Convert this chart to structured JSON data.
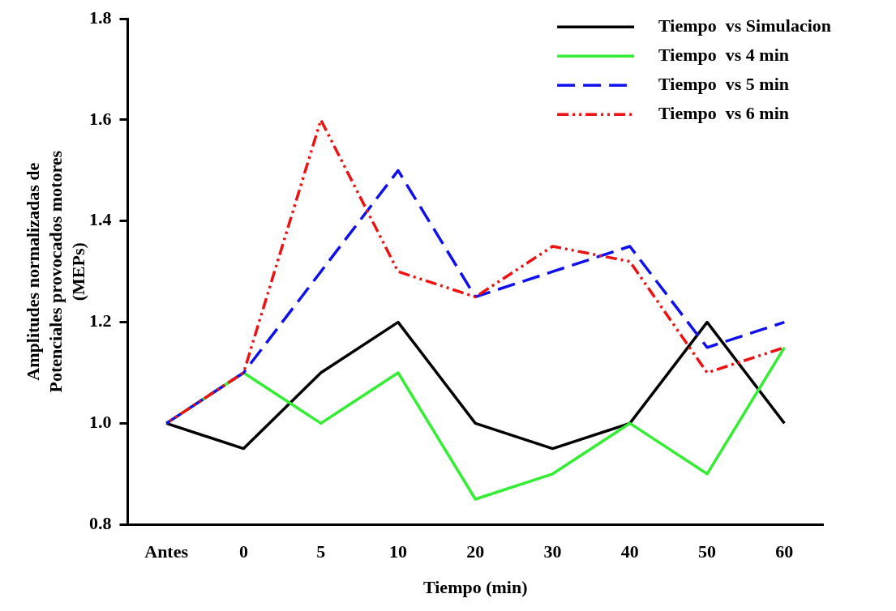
{
  "chart_data": {
    "type": "line",
    "xlabel": "Tiempo (min)",
    "ylabel": "Amplitudes normalizadas de Potenciales provocados motores (MEPs)",
    "categories": [
      "Antes",
      "0",
      "5",
      "10",
      "20",
      "30",
      "40",
      "50",
      "60"
    ],
    "series": [
      {
        "name": "Tiempo  vs Simulacion",
        "color": "#000000",
        "line_style": "solid",
        "values": [
          1.0,
          0.95,
          1.1,
          1.2,
          1.0,
          0.95,
          1.0,
          1.2,
          1.0
        ]
      },
      {
        "name": "Tiempo  vs 4 min",
        "color": "#33ee33",
        "line_style": "solid",
        "values": [
          1.0,
          1.1,
          1.0,
          1.1,
          0.85,
          0.9,
          1.0,
          0.9,
          1.15
        ]
      },
      {
        "name": "Tiempo  vs 5 min",
        "color": "#1010ee",
        "line_style": "dashed",
        "values": [
          1.0,
          1.1,
          1.3,
          1.5,
          1.25,
          1.3,
          1.35,
          1.15,
          1.2
        ]
      },
      {
        "name": "Tiempo  vs 6 min",
        "color": "#ee1111",
        "line_style": "dotted",
        "values": [
          1.0,
          1.1,
          1.6,
          1.3,
          1.25,
          1.35,
          1.32,
          1.1,
          1.15
        ]
      }
    ],
    "ylim": [
      0.8,
      1.8
    ],
    "yticks": [
      {
        "value": 0.8,
        "label": "0.8"
      },
      {
        "value": 1.0,
        "label": "1.0"
      },
      {
        "value": 1.2,
        "label": "1.2"
      },
      {
        "value": 1.4,
        "label": "1.4"
      },
      {
        "value": 1.6,
        "label": "1.6"
      },
      {
        "value": 1.8,
        "label": "1.8"
      }
    ],
    "grid": false,
    "legend": "top right",
    "marker": "none"
  }
}
